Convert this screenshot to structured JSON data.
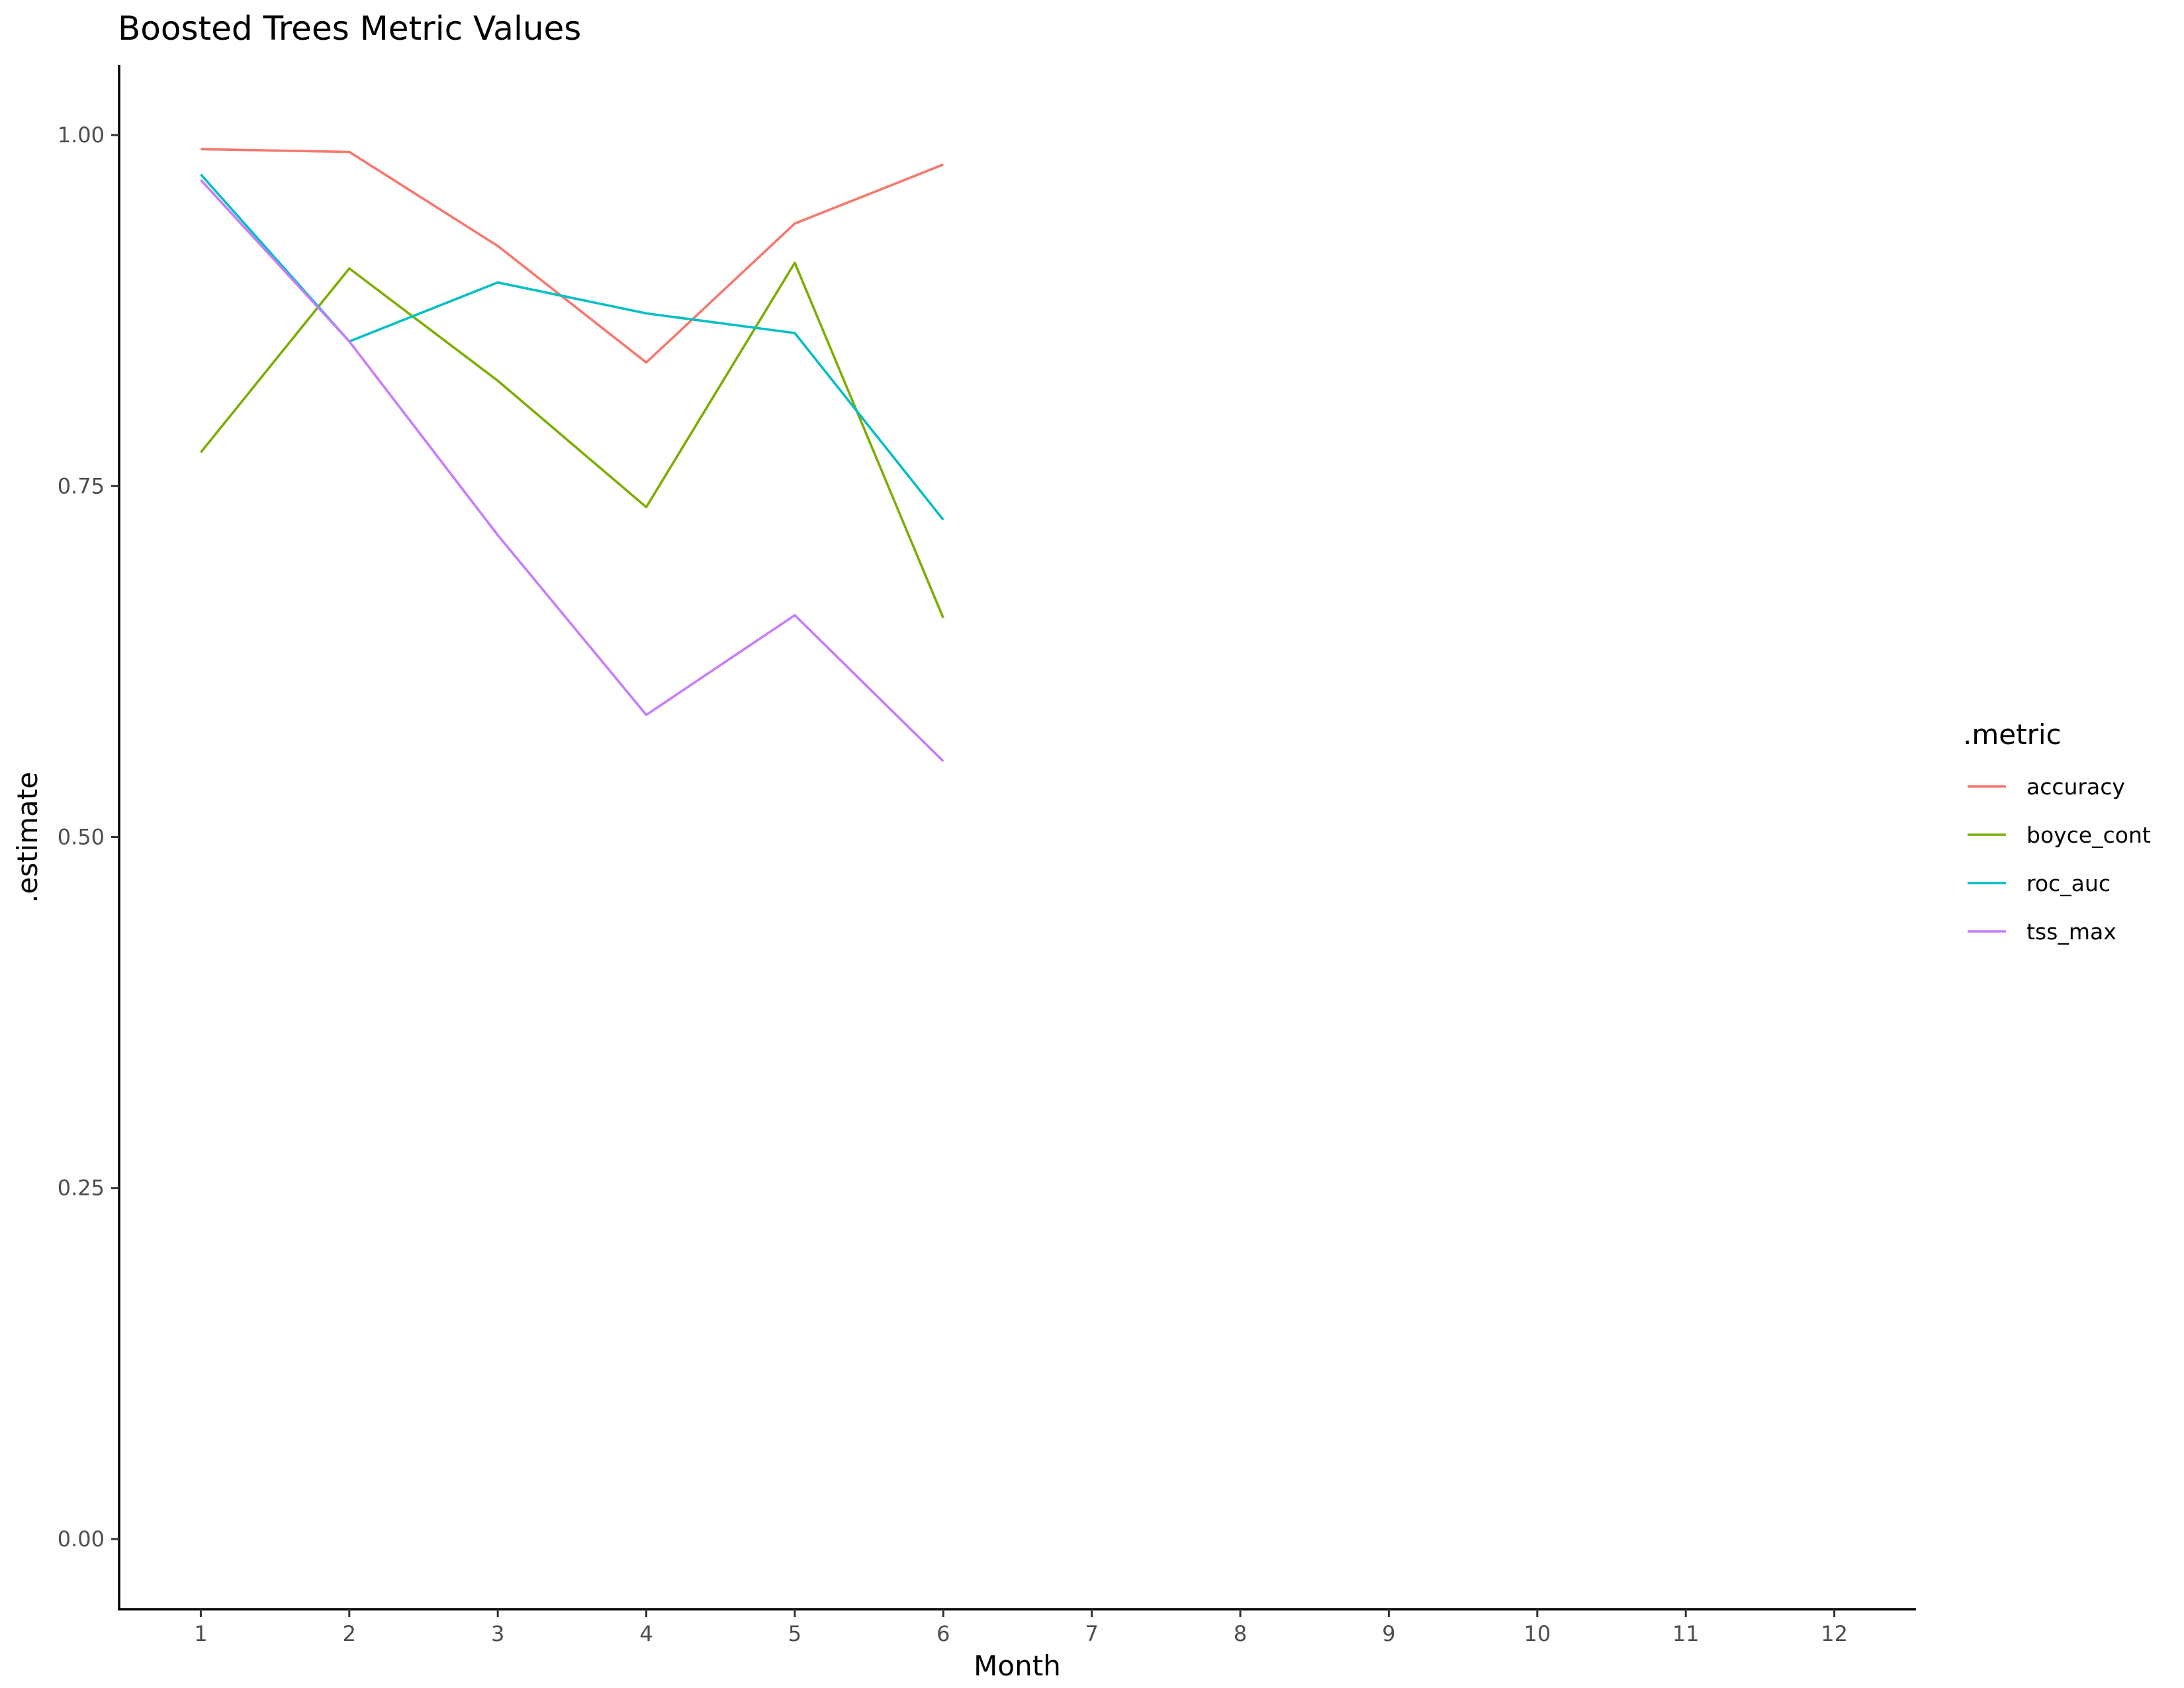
{
  "chart_data": {
    "type": "line",
    "title": "Boosted Trees Metric Values",
    "xlabel": "Month",
    "ylabel": ".estimate",
    "x_ticks": [
      "1",
      "2",
      "3",
      "4",
      "5",
      "6",
      "7",
      "8",
      "9",
      "10",
      "11",
      "12"
    ],
    "xlim": [
      0.45,
      12.55
    ],
    "y_ticks": [
      "0.00",
      "0.25",
      "0.50",
      "0.75",
      "1.00"
    ],
    "y_tick_values": [
      0,
      0.25,
      0.5,
      0.75,
      1.0
    ],
    "ylim": [
      -0.05,
      1.05
    ],
    "grid": false,
    "legend": {
      "title": ".metric",
      "position": "right"
    },
    "series": [
      {
        "name": "accuracy",
        "color": "#F8766D",
        "x": [
          1,
          2,
          3,
          4,
          5,
          6
        ],
        "y": [
          0.99,
          0.988,
          0.921,
          0.838,
          0.937,
          0.979
        ]
      },
      {
        "name": "boyce_cont",
        "color": "#7CAE00",
        "x": [
          1,
          2,
          3,
          4,
          5,
          6
        ],
        "y": [
          0.774,
          0.905,
          0.825,
          0.735,
          0.909,
          0.656
        ]
      },
      {
        "name": "roc_auc",
        "color": "#00BFC4",
        "x": [
          1,
          2,
          3,
          4,
          5,
          6
        ],
        "y": [
          0.972,
          0.853,
          0.895,
          0.873,
          0.859,
          0.726
        ]
      },
      {
        "name": "tss_max",
        "color": "#C77CFF",
        "x": [
          1,
          2,
          3,
          4,
          5,
          6
        ],
        "y": [
          0.968,
          0.853,
          0.715,
          0.587,
          0.658,
          0.554
        ]
      }
    ]
  }
}
